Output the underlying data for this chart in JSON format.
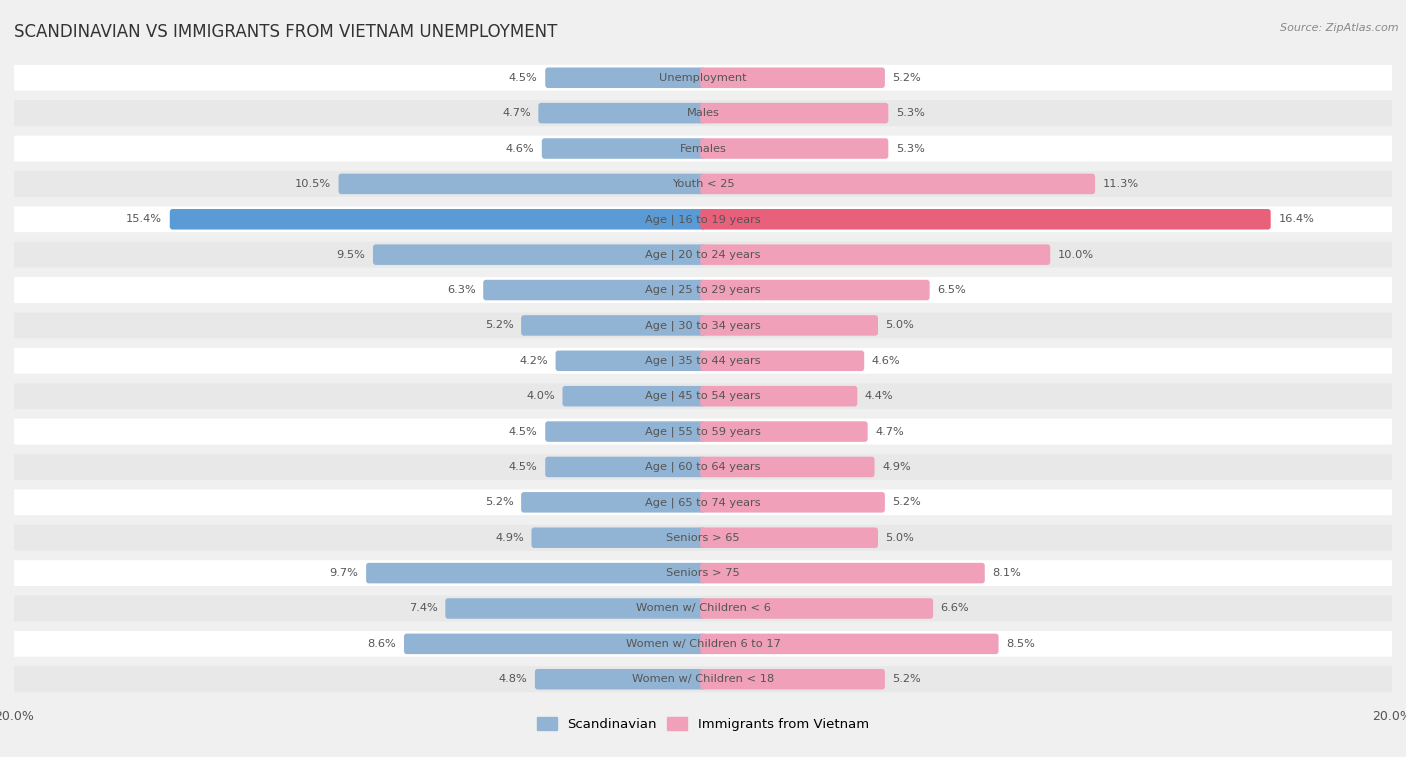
{
  "title": "SCANDINAVIAN VS IMMIGRANTS FROM VIETNAM UNEMPLOYMENT",
  "source": "Source: ZipAtlas.com",
  "categories": [
    "Unemployment",
    "Males",
    "Females",
    "Youth < 25",
    "Age | 16 to 19 years",
    "Age | 20 to 24 years",
    "Age | 25 to 29 years",
    "Age | 30 to 34 years",
    "Age | 35 to 44 years",
    "Age | 45 to 54 years",
    "Age | 55 to 59 years",
    "Age | 60 to 64 years",
    "Age | 65 to 74 years",
    "Seniors > 65",
    "Seniors > 75",
    "Women w/ Children < 6",
    "Women w/ Children 6 to 17",
    "Women w/ Children < 18"
  ],
  "scandinavian": [
    4.5,
    4.7,
    4.6,
    10.5,
    15.4,
    9.5,
    6.3,
    5.2,
    4.2,
    4.0,
    4.5,
    4.5,
    5.2,
    4.9,
    9.7,
    7.4,
    8.6,
    4.8
  ],
  "vietnam": [
    5.2,
    5.3,
    5.3,
    11.3,
    16.4,
    10.0,
    6.5,
    5.0,
    4.6,
    4.4,
    4.7,
    4.9,
    5.2,
    5.0,
    8.1,
    6.6,
    8.5,
    5.2
  ],
  "scand_color": "#92b4d4",
  "vietnam_color": "#f0a0b8",
  "scand_color_highlight": "#5b9bd5",
  "vietnam_color_highlight": "#e8607a",
  "bg_color": "#f0f0f0",
  "row_bg": "#ffffff",
  "row_alt_bg": "#e8e8e8",
  "max_value": 20.0,
  "legend_scand": "Scandinavian",
  "legend_vietnam": "Immigrants from Vietnam"
}
